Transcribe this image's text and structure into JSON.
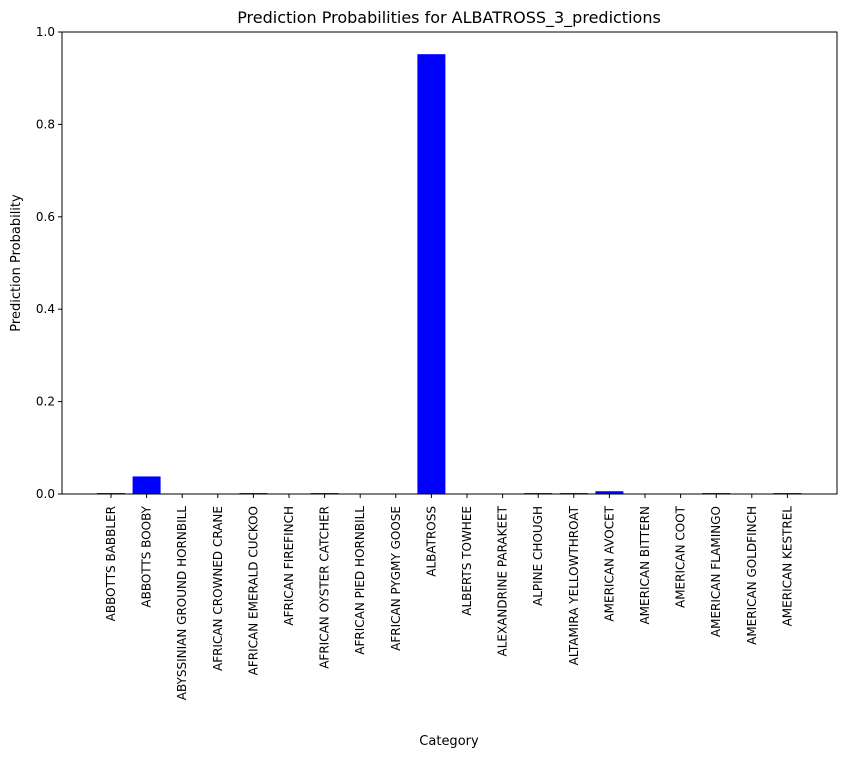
{
  "chart_data": {
    "type": "bar",
    "title": "Prediction Probabilities for ALBATROSS_3_predictions",
    "xlabel": "Category",
    "ylabel": "Prediction Probability",
    "ylim": [
      0,
      1.0
    ],
    "yticks": [
      "0.0",
      "0.2",
      "0.4",
      "0.6",
      "0.8",
      "1.0"
    ],
    "grid": false,
    "bar_color": "#0000ff",
    "categories": [
      "ABBOTTS BABBLER",
      "ABBOTTS BOOBY",
      "ABYSSINIAN GROUND HORNBILL",
      "AFRICAN CROWNED CRANE",
      "AFRICAN EMERALD CUCKOO",
      "AFRICAN FIREFINCH",
      "AFRICAN OYSTER CATCHER",
      "AFRICAN PIED HORNBILL",
      "AFRICAN PYGMY GOOSE",
      "ALBATROSS",
      "ALBERTS TOWHEE",
      "ALEXANDRINE PARAKEET",
      "ALPINE CHOUGH",
      "ALTAMIRA YELLOWTHROAT",
      "AMERICAN AVOCET",
      "AMERICAN BITTERN",
      "AMERICAN COOT",
      "AMERICAN FLAMINGO",
      "AMERICAN GOLDFINCH",
      "AMERICAN KESTREL"
    ],
    "values": [
      0.002,
      0.038,
      0.0,
      0.0005,
      0.002,
      0.0,
      0.002,
      0.0,
      0.0,
      0.952,
      0.0,
      0.0,
      0.002,
      0.002,
      0.006,
      0.0,
      0.0005,
      0.002,
      0.0,
      0.002
    ]
  }
}
